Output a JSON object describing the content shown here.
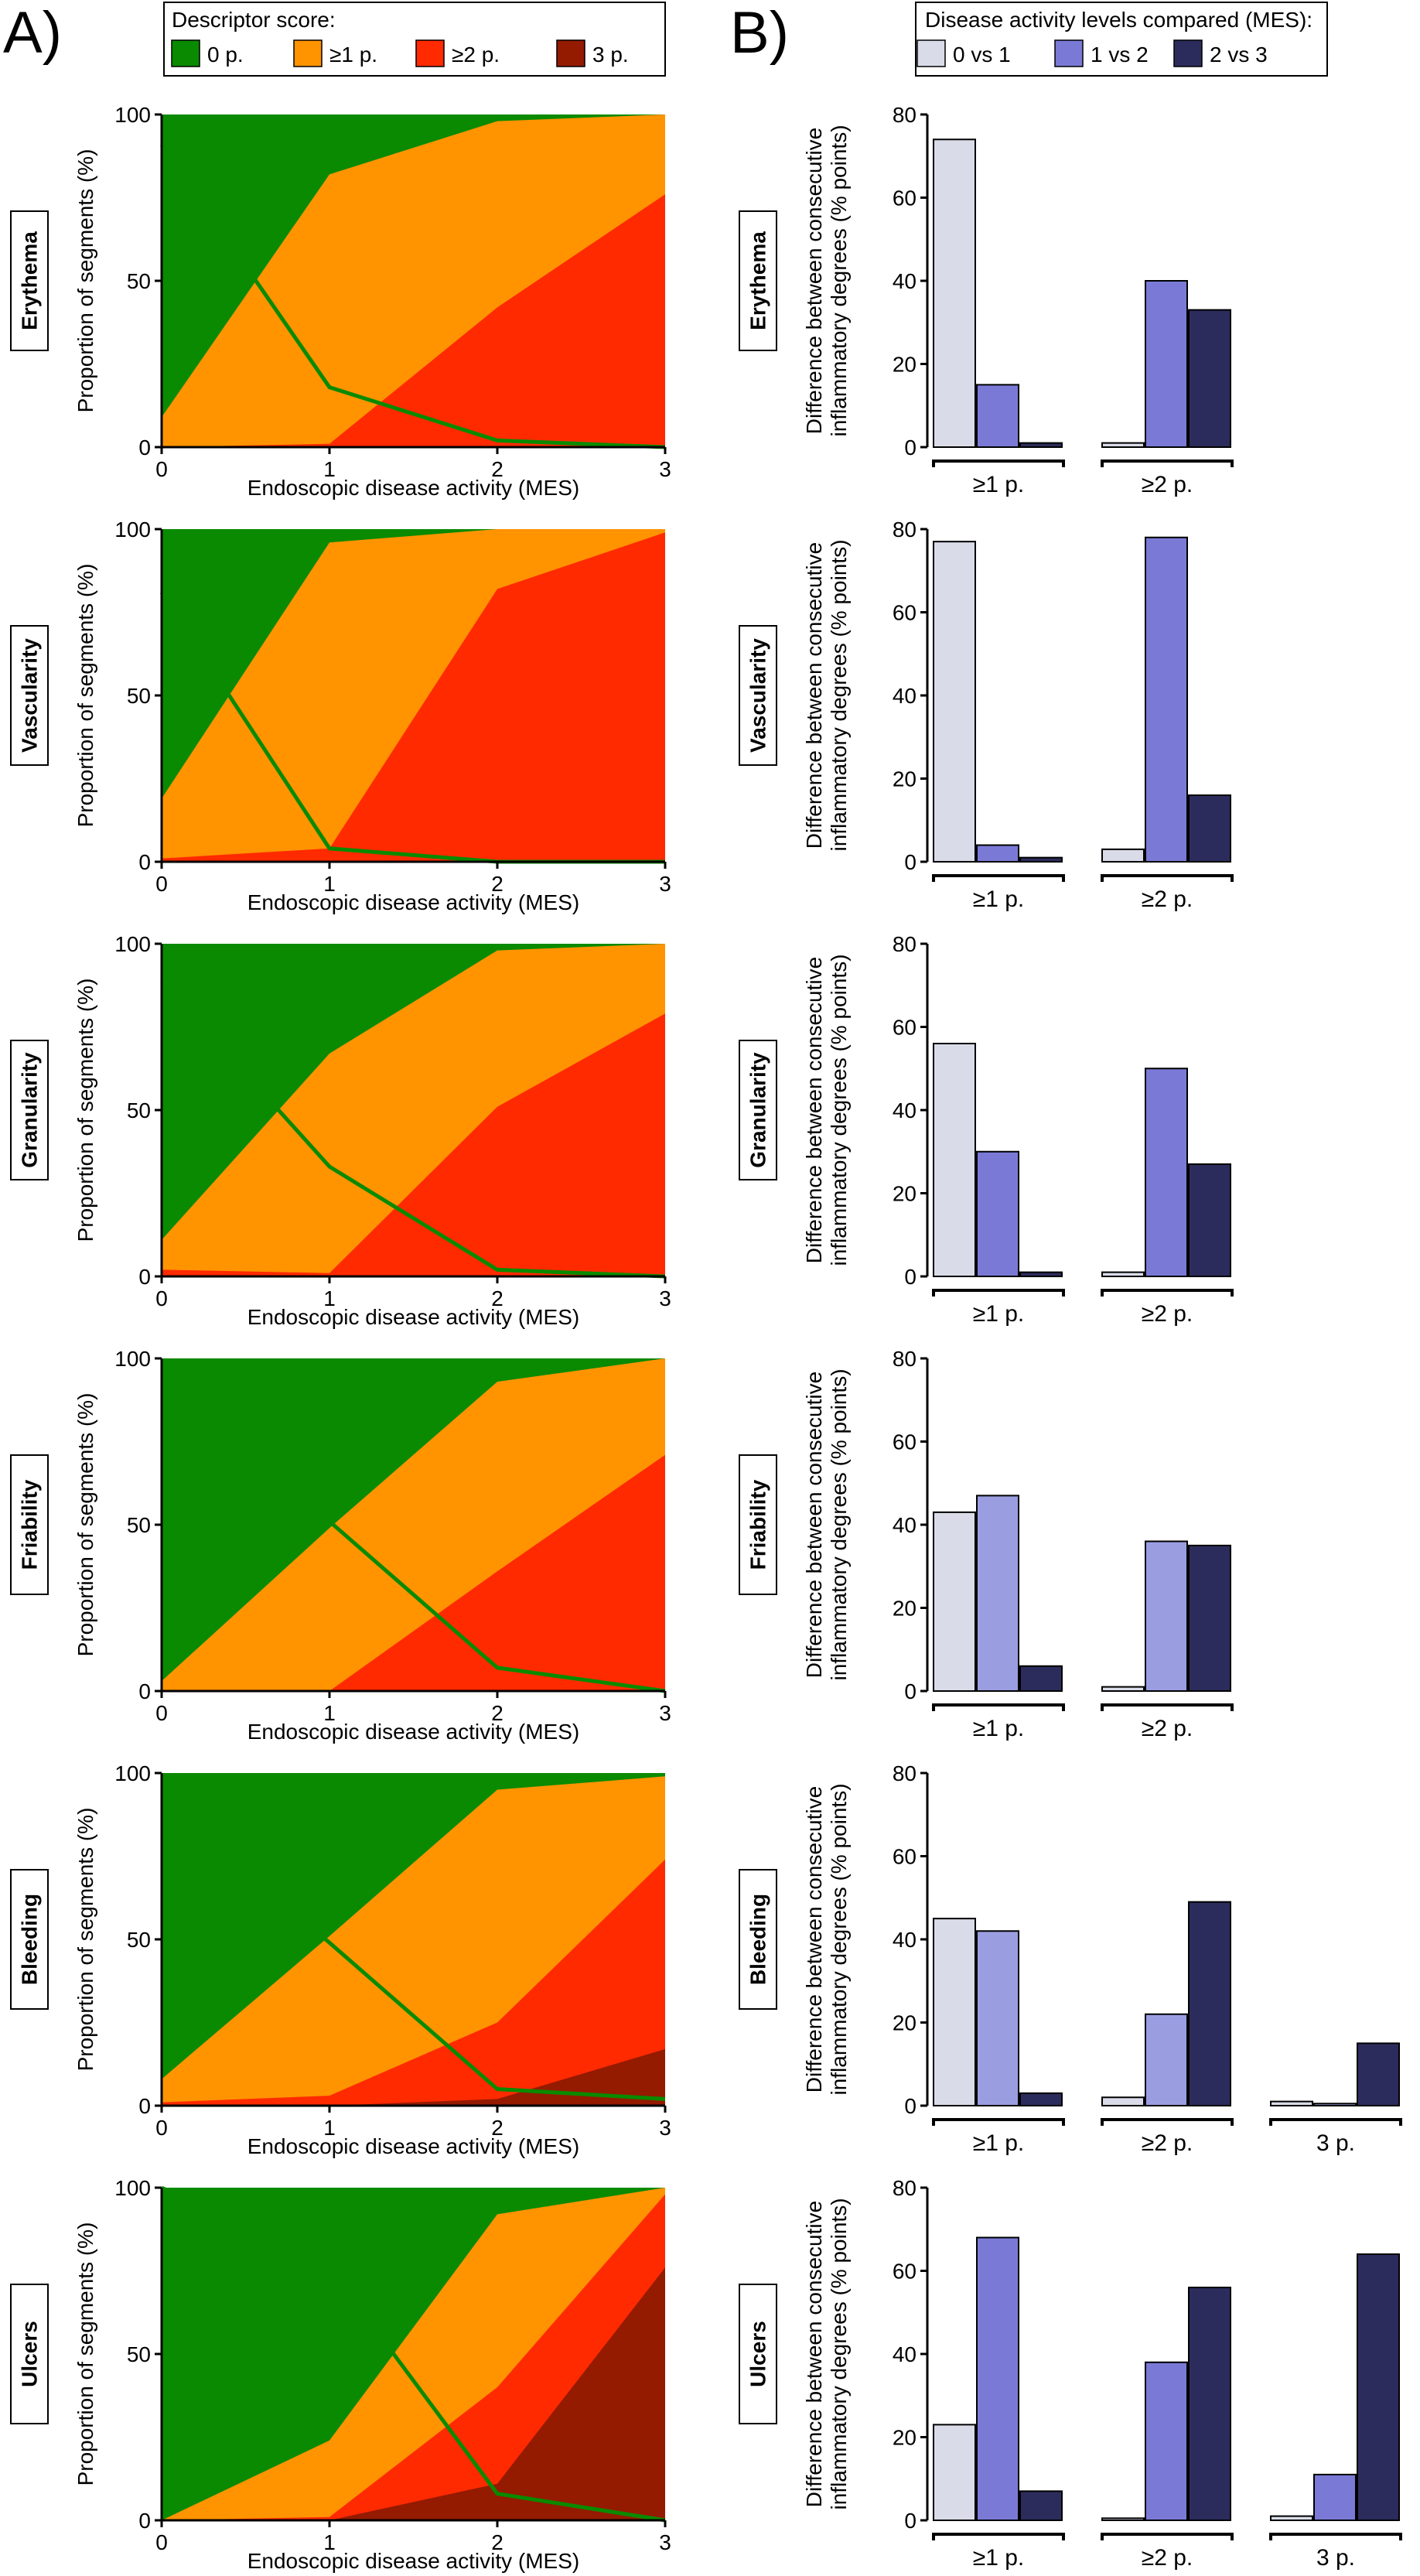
{
  "panel_a": {
    "letter": "A)"
  },
  "panel_b": {
    "letter": "B)"
  },
  "legend_a": {
    "title": "Descriptor score:",
    "items": [
      {
        "label": "0 p.",
        "color": "#0a8a00"
      },
      {
        "label": "≥1 p.",
        "color": "#ff9300"
      },
      {
        "label": "≥2 p.",
        "color": "#ff2a00"
      },
      {
        "label": "3 p.",
        "color": "#941a00"
      }
    ]
  },
  "legend_b": {
    "title": "Disease activity levels compared (MES):",
    "items": [
      {
        "label": "0 vs 1",
        "color": "#d9dce8"
      },
      {
        "label": "1 vs 2",
        "color": "#7a7ad6"
      },
      {
        "label": "2 vs 3",
        "color": "#2c2c5c"
      }
    ]
  },
  "chart_data": [
    {
      "type": "area",
      "descriptor": "Erythema",
      "xlabel": "Endoscopic disease activity (MES)",
      "ylabel": "Proportion of segments (%)",
      "x": [
        0,
        1,
        2,
        3
      ],
      "xlim": [
        0,
        3
      ],
      "ylim": [
        0,
        100
      ],
      "yticks": [
        0,
        50,
        100
      ],
      "series": [
        {
          "name": "≥1 p.",
          "values": [
            9,
            82,
            98,
            100
          ]
        },
        {
          "name": "≥2 p.",
          "values": [
            0,
            1,
            42,
            76
          ]
        },
        {
          "name": "3 p.",
          "values": [
            0,
            0,
            0,
            0
          ]
        },
        {
          "name": "0 p.",
          "values": [
            91,
            18,
            2,
            0
          ]
        }
      ]
    },
    {
      "type": "area",
      "descriptor": "Vascularity",
      "xlabel": "Endoscopic disease activity (MES)",
      "ylabel": "Proportion of segments (%)",
      "x": [
        0,
        1,
        2,
        3
      ],
      "xlim": [
        0,
        3
      ],
      "ylim": [
        0,
        100
      ],
      "yticks": [
        0,
        50,
        100
      ],
      "series": [
        {
          "name": "≥1 p.",
          "values": [
            19,
            96,
            100,
            100
          ]
        },
        {
          "name": "≥2 p.",
          "values": [
            1,
            4,
            82,
            99
          ]
        },
        {
          "name": "3 p.",
          "values": [
            0,
            0,
            0,
            0
          ]
        },
        {
          "name": "0 p.",
          "values": [
            81,
            4,
            0,
            0
          ]
        }
      ]
    },
    {
      "type": "area",
      "descriptor": "Granularity",
      "xlabel": "Endoscopic disease activity (MES)",
      "ylabel": "Proportion of segments (%)",
      "x": [
        0,
        1,
        2,
        3
      ],
      "xlim": [
        0,
        3
      ],
      "ylim": [
        0,
        100
      ],
      "yticks": [
        0,
        50,
        100
      ],
      "series": [
        {
          "name": "≥1 p.",
          "values": [
            11,
            67,
            98,
            100
          ]
        },
        {
          "name": "≥2 p.",
          "values": [
            2,
            1,
            51,
            79
          ]
        },
        {
          "name": "3 p.",
          "values": [
            0,
            0,
            0,
            0
          ]
        },
        {
          "name": "0 p.",
          "values": [
            89,
            33,
            2,
            0
          ]
        }
      ]
    },
    {
      "type": "area",
      "descriptor": "Friability",
      "xlabel": "Endoscopic disease activity (MES)",
      "ylabel": "Proportion of segments (%)",
      "x": [
        0,
        1,
        2,
        3
      ],
      "xlim": [
        0,
        3
      ],
      "ylim": [
        0,
        100
      ],
      "yticks": [
        0,
        50,
        100
      ],
      "series": [
        {
          "name": "≥1 p.",
          "values": [
            3,
            49,
            93,
            100
          ]
        },
        {
          "name": "≥2 p.",
          "values": [
            0,
            0,
            36,
            71
          ]
        },
        {
          "name": "3 p.",
          "values": [
            0,
            0,
            0,
            0
          ]
        },
        {
          "name": "0 p.",
          "values": [
            97,
            51,
            7,
            0
          ]
        }
      ]
    },
    {
      "type": "area",
      "descriptor": "Bleeding",
      "xlabel": "Endoscopic disease activity (MES)",
      "ylabel": "Proportion of segments (%)",
      "x": [
        0,
        1,
        2,
        3
      ],
      "xlim": [
        0,
        3
      ],
      "ylim": [
        0,
        100
      ],
      "yticks": [
        0,
        50,
        100
      ],
      "series": [
        {
          "name": "≥1 p.",
          "values": [
            8,
            51,
            95,
            99
          ]
        },
        {
          "name": "≥2 p.",
          "values": [
            1,
            3,
            25,
            74
          ]
        },
        {
          "name": "3 p.",
          "values": [
            0,
            0,
            2,
            17
          ]
        },
        {
          "name": "0 p.",
          "values": [
            92,
            49,
            5,
            2
          ]
        }
      ]
    },
    {
      "type": "area",
      "descriptor": "Ulcers",
      "xlabel": "Endoscopic disease activity (MES)",
      "ylabel": "Proportion of segments (%)",
      "x": [
        0,
        1,
        2,
        3
      ],
      "xlim": [
        0,
        3
      ],
      "ylim": [
        0,
        100
      ],
      "yticks": [
        0,
        50,
        100
      ],
      "series": [
        {
          "name": "≥1 p.",
          "values": [
            0,
            24,
            92,
            100
          ]
        },
        {
          "name": "≥2 p.",
          "values": [
            0,
            1,
            40,
            98
          ]
        },
        {
          "name": "3 p.",
          "values": [
            0,
            0,
            11,
            76
          ]
        },
        {
          "name": "0 p.",
          "values": [
            100,
            76,
            8,
            0
          ]
        }
      ]
    },
    {
      "type": "bar",
      "descriptor": "Erythema",
      "ylabel": "Difference between consecutive inflammatory degrees (% points)",
      "categories": [
        "≥1 p.",
        "≥2 p."
      ],
      "ylim": [
        0,
        80
      ],
      "yticks": [
        0,
        20,
        40,
        60,
        80
      ],
      "series": [
        {
          "name": "0 vs 1",
          "values": [
            74,
            1
          ]
        },
        {
          "name": "1 vs 2",
          "values": [
            15,
            40
          ]
        },
        {
          "name": "2 vs 3",
          "values": [
            1,
            33
          ]
        }
      ]
    },
    {
      "type": "bar",
      "descriptor": "Vascularity",
      "ylabel": "Difference between consecutive inflammatory degrees (% points)",
      "categories": [
        "≥1 p.",
        "≥2 p."
      ],
      "ylim": [
        0,
        80
      ],
      "yticks": [
        0,
        20,
        40,
        60,
        80
      ],
      "series": [
        {
          "name": "0 vs 1",
          "values": [
            77,
            3
          ]
        },
        {
          "name": "1 vs 2",
          "values": [
            4,
            78
          ]
        },
        {
          "name": "2 vs 3",
          "values": [
            1,
            16
          ]
        }
      ]
    },
    {
      "type": "bar",
      "descriptor": "Granularity",
      "ylabel": "Difference between consecutive inflammatory degrees (% points)",
      "categories": [
        "≥1 p.",
        "≥2 p."
      ],
      "ylim": [
        0,
        80
      ],
      "yticks": [
        0,
        20,
        40,
        60,
        80
      ],
      "series": [
        {
          "name": "0 vs 1",
          "values": [
            56,
            1
          ]
        },
        {
          "name": "1 vs 2",
          "values": [
            30,
            50
          ]
        },
        {
          "name": "2 vs 3",
          "values": [
            1,
            27
          ]
        }
      ]
    },
    {
      "type": "bar",
      "descriptor": "Friability",
      "ylabel": "Difference between consecutive inflammatory degrees (% points)",
      "categories": [
        "≥1 p.",
        "≥2 p."
      ],
      "ylim": [
        0,
        80
      ],
      "yticks": [
        0,
        20,
        40,
        60,
        80
      ],
      "series": [
        {
          "name": "0 vs 1",
          "values": [
            43,
            1
          ]
        },
        {
          "name": "1 vs 2",
          "values": [
            47,
            36
          ]
        },
        {
          "name": "2 vs 3",
          "values": [
            6,
            35
          ]
        }
      ]
    },
    {
      "type": "bar",
      "descriptor": "Bleeding",
      "ylabel": "Difference between consecutive inflammatory degrees (% points)",
      "categories": [
        "≥1 p.",
        "≥2 p.",
        "3 p."
      ],
      "ylim": [
        0,
        80
      ],
      "yticks": [
        0,
        20,
        40,
        60,
        80
      ],
      "series": [
        {
          "name": "0 vs 1",
          "values": [
            45,
            2,
            1
          ]
        },
        {
          "name": "1 vs 2",
          "values": [
            42,
            22,
            0.5
          ]
        },
        {
          "name": "2 vs 3",
          "values": [
            3,
            49,
            15
          ]
        }
      ]
    },
    {
      "type": "bar",
      "descriptor": "Ulcers",
      "ylabel": "Difference between consecutive inflammatory degrees (% points)",
      "categories": [
        "≥1 p.",
        "≥2 p.",
        "3 p."
      ],
      "ylim": [
        0,
        80
      ],
      "yticks": [
        0,
        20,
        40,
        60,
        80
      ],
      "series": [
        {
          "name": "0 vs 1",
          "values": [
            23,
            0.5,
            1
          ]
        },
        {
          "name": "1 vs 2",
          "values": [
            68,
            38,
            11
          ]
        },
        {
          "name": "2 vs 3",
          "values": [
            7,
            56,
            64
          ]
        }
      ]
    }
  ]
}
